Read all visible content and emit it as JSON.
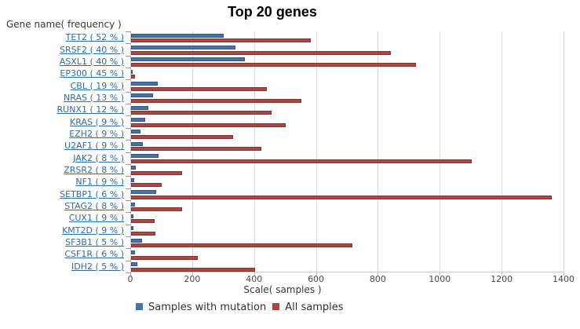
{
  "title": "Top 20 genes",
  "y_axis_title": "Gene name( frequency )",
  "x_axis_title": "Scale( samples )",
  "colors": {
    "series_mutation": "#4572A7",
    "series_all": "#AA4643",
    "gene_link": "#2e6da4",
    "gridline": "#d9d9d9",
    "axis_line": "#c7ccd1"
  },
  "legend": {
    "items": [
      {
        "label": "Samples with mutation",
        "color": "#4572A7"
      },
      {
        "label": "All samples",
        "color": "#AA4643"
      }
    ]
  },
  "chart_data": {
    "type": "bar",
    "orientation": "horizontal",
    "title": "Top 20 genes",
    "xlabel": "Scale( samples )",
    "ylabel": "Gene name( frequency )",
    "xlim": [
      0,
      1400
    ],
    "x_ticks": [
      0,
      200,
      400,
      600,
      800,
      1000,
      1200,
      1400
    ],
    "grid": true,
    "legend_position": "bottom",
    "categories": [
      "TET2 ( 52 % )",
      "SRSF2 ( 40 % )",
      "ASXL1 ( 40 % )",
      "EP300 ( 45 % )",
      "CBL ( 19 % )",
      "NRAS ( 13 % )",
      "RUNX1 ( 12 % )",
      "KRAS ( 9 % )",
      "EZH2 ( 9 % )",
      "U2AF1 ( 9 % )",
      "JAK2 ( 8 % )",
      "ZRSR2 ( 8 % )",
      "NF1 ( 9 % )",
      "SETBP1 ( 6 % )",
      "STAG2 ( 8 % )",
      "CUX1 ( 9 % )",
      "KMT2D ( 9 % )",
      "SF3B1 ( 5 % )",
      "CSF1R ( 6 % )",
      "IDH2 ( 5 % )"
    ],
    "series": [
      {
        "name": "Samples with mutation",
        "color": "#4572A7",
        "values": [
          300,
          338,
          368,
          6,
          85,
          72,
          55,
          45,
          30,
          38,
          90,
          14,
          9,
          80,
          13,
          7,
          7,
          35,
          13,
          20
        ]
      },
      {
        "name": "All samples",
        "color": "#AA4643",
        "values": [
          580,
          840,
          920,
          13,
          440,
          550,
          455,
          500,
          330,
          420,
          1100,
          165,
          100,
          1360,
          165,
          75,
          78,
          715,
          215,
          400
        ]
      }
    ]
  }
}
